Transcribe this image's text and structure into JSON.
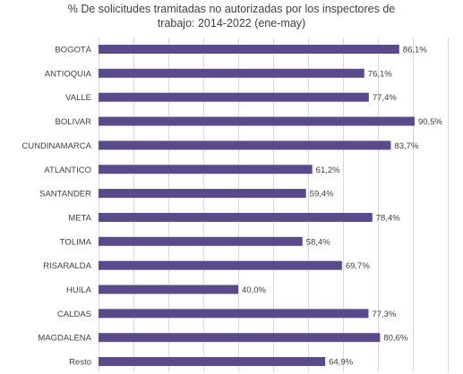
{
  "chart_data": {
    "type": "bar",
    "orientation": "horizontal",
    "title_lines": [
      "% De solicitudes tramitadas no autorizadas por los inspectores de",
      "trabajo: 2014-2022 (ene-may)"
    ],
    "categories": [
      "BOGOTÁ",
      "ANTIOQUIA",
      "VALLE",
      "BOLIVAR",
      "CUNDINAMARCA",
      "ATLANTICO",
      "SANTANDER",
      "META",
      "TOLIMA",
      "RISARALDA",
      "HUILA",
      "CALDAS",
      "MAGDALENA",
      "Resto"
    ],
    "values": [
      86.1,
      76.1,
      77.4,
      90.5,
      83.7,
      61.2,
      59.4,
      78.4,
      58.4,
      69.7,
      40.0,
      77.3,
      80.6,
      64.9
    ],
    "value_labels": [
      "86,1%",
      "76,1%",
      "77,4%",
      "90,5%",
      "83,7%",
      "61,2%",
      "59,4%",
      "78,4%",
      "58,4%",
      "69,7%",
      "40,0%",
      "77,3%",
      "80,6%",
      "64,9%"
    ],
    "xlim": [
      0,
      100
    ],
    "bar_color": "#5b4a8b",
    "grid_color": "#d9d9d9",
    "grid": true,
    "legend": false
  }
}
